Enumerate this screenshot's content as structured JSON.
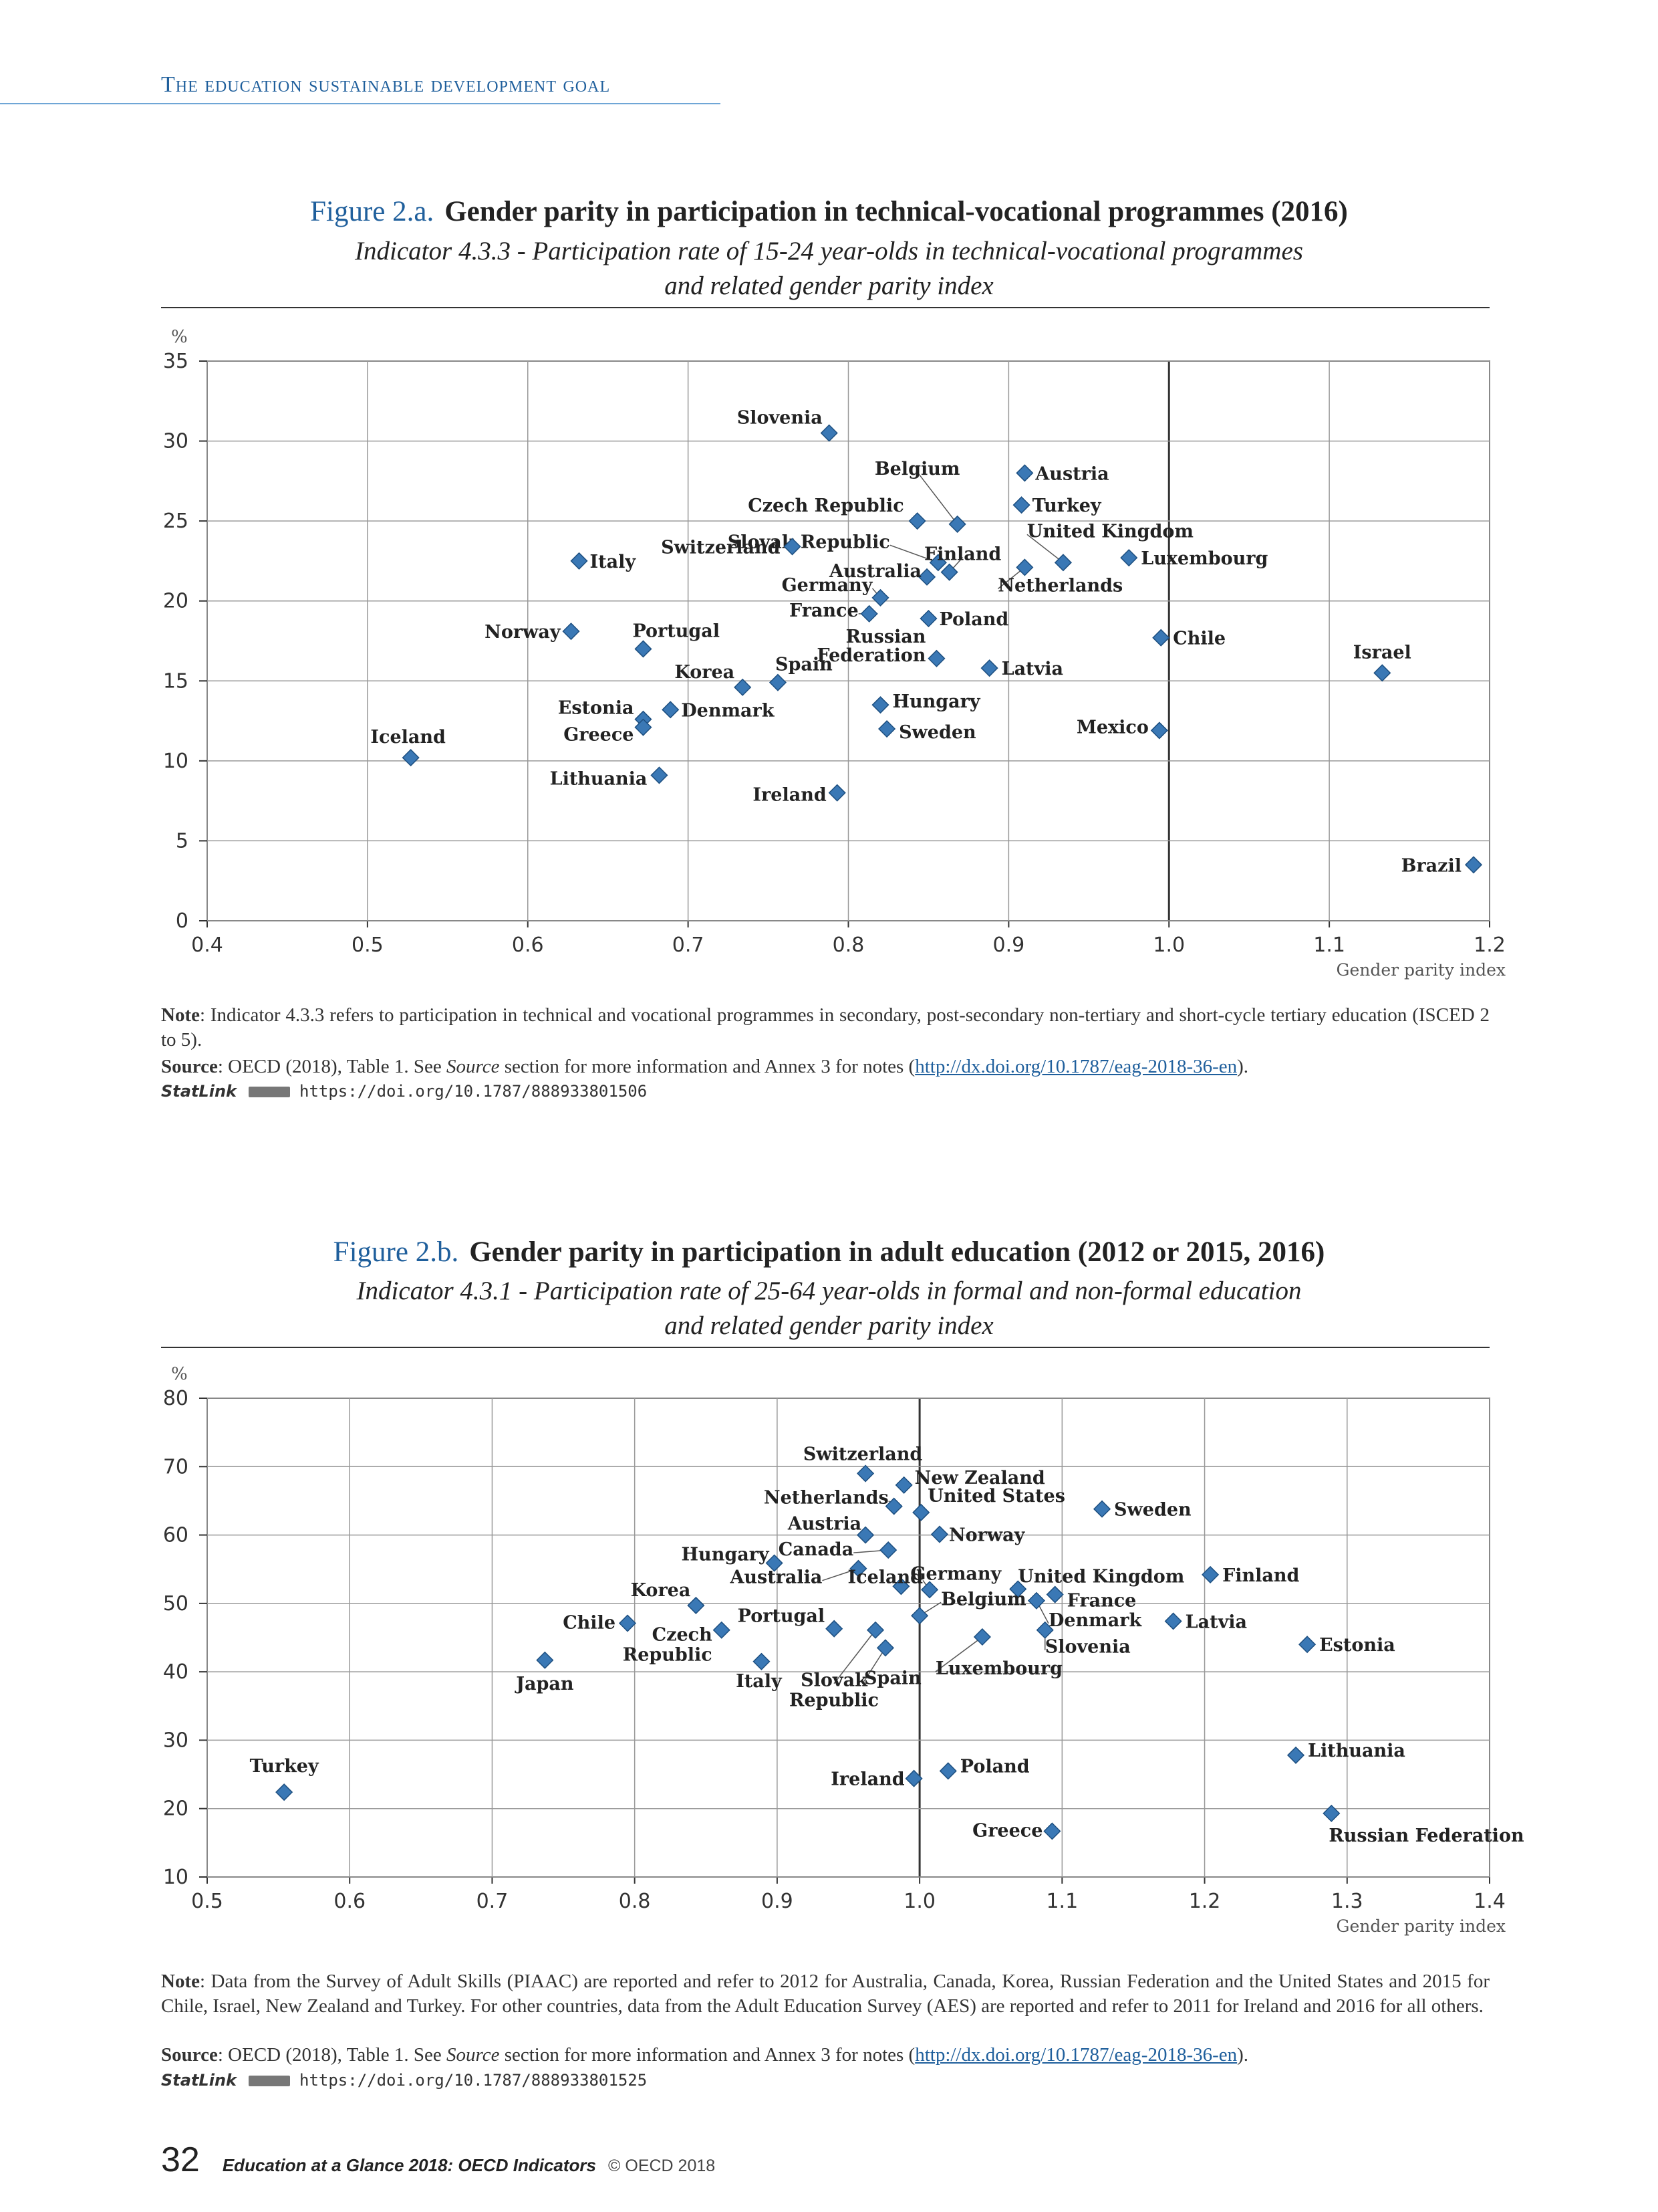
{
  "header": {
    "title": "The education sustainable development goal"
  },
  "figures": [
    {
      "number": "Figure 2.a.",
      "title": "Gender parity in participation in technical-vocational programmes (2016)",
      "subtitle_line1": "Indicator 4.3.3 - Participation rate of 15-24 year-olds in technical-vocational programmes",
      "subtitle_line2": "and related gender parity index",
      "note_label": "Note",
      "note": ": Indicator 4.3.3 refers to participation in technical and vocational programmes in secondary, post-secondary non-tertiary and short-cycle tertiary education (ISCED 2 to 5).",
      "source_label": "Source",
      "source_pre": ": OECD (2018), Table 1. See ",
      "source_italic": "Source",
      "source_post": " section for more information and Annex 3 for notes (",
      "source_link": "http://dx.doi.org/10.1787/eag-2018-36-en",
      "source_end": ").",
      "statlink_label": "StatLink",
      "statlink_url": "https://doi.org/10.1787/888933801506"
    },
    {
      "number": "Figure 2.b.",
      "title": "Gender parity in participation in adult education (2012 or 2015, 2016)",
      "subtitle_line1": "Indicator 4.3.1 - Participation rate of 25-64 year-olds in formal and non-formal education",
      "subtitle_line2": "and related gender parity index",
      "note_label": "Note",
      "note": ": Data from the Survey of Adult Skills (PIAAC) are reported and refer to 2012 for Australia, Canada, Korea, Russian Federation and the United States and 2015 for Chile, Israel, New Zealand and Turkey. For other countries, data from the Adult Education Survey (AES) are reported and refer to 2011 for Ireland and 2016 for all others.",
      "source_label": "Source",
      "source_pre": ": OECD (2018), Table 1. See ",
      "source_italic": "Source",
      "source_post": " section for more information and Annex 3 for notes (",
      "source_link": "http://dx.doi.org/10.1787/eag-2018-36-en",
      "source_end": ").",
      "statlink_label": "StatLink",
      "statlink_url": "https://doi.org/10.1787/888933801525"
    }
  ],
  "chart_data": [
    {
      "type": "scatter",
      "title": "Gender parity in participation in technical-vocational programmes (2016)",
      "xlabel": "Gender parity index",
      "ylabel": "%",
      "xlim": [
        0.4,
        1.2
      ],
      "ylim": [
        0,
        35
      ],
      "xticks": [
        "0.4",
        "0.5",
        "0.6",
        "0.7",
        "0.8",
        "0.9",
        "1.0",
        "1.1",
        "1.2"
      ],
      "yticks": [
        "0",
        "5",
        "10",
        "15",
        "20",
        "25",
        "30",
        "35"
      ],
      "grid": true,
      "reference_x": 1.0,
      "marker_color": "#3a78b5",
      "points": [
        {
          "label": "Slovenia",
          "x": 0.788,
          "y": 30.5
        },
        {
          "label": "Belgium",
          "x": 0.868,
          "y": 24.8
        },
        {
          "label": "Austria",
          "x": 0.91,
          "y": 28.0
        },
        {
          "label": "Turkey",
          "x": 0.908,
          "y": 26.0
        },
        {
          "label": "Czech Republic",
          "x": 0.843,
          "y": 25.0
        },
        {
          "label": "Slovak Republic",
          "x": 0.856,
          "y": 22.4
        },
        {
          "label": "Finland",
          "x": 0.863,
          "y": 21.8
        },
        {
          "label": "United Kingdom",
          "x": 0.934,
          "y": 22.4
        },
        {
          "label": "Netherlands",
          "x": 0.91,
          "y": 22.1
        },
        {
          "label": "Luxembourg",
          "x": 0.975,
          "y": 22.7
        },
        {
          "label": "Switzerland",
          "x": 0.765,
          "y": 23.4
        },
        {
          "label": "Italy",
          "x": 0.632,
          "y": 22.5
        },
        {
          "label": "Australia",
          "x": 0.849,
          "y": 21.5
        },
        {
          "label": "Germany",
          "x": 0.82,
          "y": 20.2
        },
        {
          "label": "France",
          "x": 0.813,
          "y": 19.2
        },
        {
          "label": "Poland",
          "x": 0.85,
          "y": 18.9
        },
        {
          "label": "Norway",
          "x": 0.627,
          "y": 18.1
        },
        {
          "label": "Portugal",
          "x": 0.672,
          "y": 17.0
        },
        {
          "label": "Chile",
          "x": 0.995,
          "y": 17.7
        },
        {
          "label": "Russian Federation",
          "x": 0.855,
          "y": 16.4
        },
        {
          "label": "Latvia",
          "x": 0.888,
          "y": 15.8
        },
        {
          "label": "Israel",
          "x": 1.133,
          "y": 15.5
        },
        {
          "label": "Korea",
          "x": 0.734,
          "y": 14.6
        },
        {
          "label": "Spain",
          "x": 0.756,
          "y": 14.9
        },
        {
          "label": "Estonia",
          "x": 0.672,
          "y": 12.6
        },
        {
          "label": "Greece",
          "x": 0.672,
          "y": 12.1
        },
        {
          "label": "Denmark",
          "x": 0.689,
          "y": 13.2
        },
        {
          "label": "Hungary",
          "x": 0.82,
          "y": 13.5
        },
        {
          "label": "Sweden",
          "x": 0.824,
          "y": 12.0
        },
        {
          "label": "Mexico",
          "x": 0.994,
          "y": 11.9
        },
        {
          "label": "Iceland",
          "x": 0.527,
          "y": 10.2
        },
        {
          "label": "Lithuania",
          "x": 0.682,
          "y": 9.1
        },
        {
          "label": "Ireland",
          "x": 0.793,
          "y": 8.0
        },
        {
          "label": "Brazil",
          "x": 1.19,
          "y": 3.5
        }
      ]
    },
    {
      "type": "scatter",
      "title": "Gender parity in participation in adult education (2012 or 2015, 2016)",
      "xlabel": "Gender parity index",
      "ylabel": "%",
      "xlim": [
        0.5,
        1.4
      ],
      "ylim": [
        10,
        80
      ],
      "xticks": [
        "0.5",
        "0.6",
        "0.7",
        "0.8",
        "0.9",
        "1.0",
        "1.1",
        "1.2",
        "1.3",
        "1.4"
      ],
      "yticks": [
        "10",
        "20",
        "30",
        "40",
        "50",
        "60",
        "70",
        "80"
      ],
      "grid": true,
      "reference_x": 1.0,
      "marker_color": "#3a78b5",
      "points": [
        {
          "label": "Switzerland",
          "x": 0.962,
          "y": 69.0
        },
        {
          "label": "New Zealand",
          "x": 0.989,
          "y": 67.3
        },
        {
          "label": "Netherlands",
          "x": 0.982,
          "y": 64.2
        },
        {
          "label": "United States",
          "x": 1.001,
          "y": 63.3
        },
        {
          "label": "Sweden",
          "x": 1.128,
          "y": 63.8
        },
        {
          "label": "Austria",
          "x": 0.962,
          "y": 60.0
        },
        {
          "label": "Norway",
          "x": 1.014,
          "y": 60.1
        },
        {
          "label": "Canada",
          "x": 0.978,
          "y": 57.8
        },
        {
          "label": "Hungary",
          "x": 0.898,
          "y": 55.9
        },
        {
          "label": "Australia",
          "x": 0.957,
          "y": 55.1
        },
        {
          "label": "Germany",
          "x": 0.987,
          "y": 52.5
        },
        {
          "label": "Finland",
          "x": 1.204,
          "y": 54.2
        },
        {
          "label": "United Kingdom",
          "x": 1.069,
          "y": 52.1
        },
        {
          "label": "France",
          "x": 1.095,
          "y": 51.3
        },
        {
          "label": "Korea",
          "x": 0.843,
          "y": 49.7
        },
        {
          "label": "Iceland",
          "x": 1.007,
          "y": 52.0
        },
        {
          "label": "Denmark",
          "x": 1.082,
          "y": 50.4
        },
        {
          "label": "Chile",
          "x": 0.795,
          "y": 47.1
        },
        {
          "label": "Portugal",
          "x": 0.94,
          "y": 46.3
        },
        {
          "label": "Belgium",
          "x": 1.0,
          "y": 48.2
        },
        {
          "label": "Latvia",
          "x": 1.178,
          "y": 47.4
        },
        {
          "label": "Czech Republic",
          "x": 0.861,
          "y": 46.1
        },
        {
          "label": "Slovenia",
          "x": 1.088,
          "y": 46.1
        },
        {
          "label": "Luxembourg",
          "x": 1.044,
          "y": 45.1
        },
        {
          "label": "Estonia",
          "x": 1.272,
          "y": 44.0
        },
        {
          "label": "Slovak Republic",
          "x": 0.969,
          "y": 46.1
        },
        {
          "label": "Spain",
          "x": 0.976,
          "y": 43.5
        },
        {
          "label": "Japan",
          "x": 0.737,
          "y": 41.7
        },
        {
          "label": "Italy",
          "x": 0.889,
          "y": 41.5
        },
        {
          "label": "Lithuania",
          "x": 1.264,
          "y": 27.8
        },
        {
          "label": "Poland",
          "x": 1.02,
          "y": 25.5
        },
        {
          "label": "Ireland",
          "x": 0.996,
          "y": 24.4
        },
        {
          "label": "Turkey",
          "x": 0.554,
          "y": 22.4
        },
        {
          "label": "Russian Federation",
          "x": 1.289,
          "y": 19.3
        },
        {
          "label": "Greece",
          "x": 1.093,
          "y": 16.7
        }
      ]
    }
  ],
  "footer": {
    "page_number": "32",
    "book_title": "Education at a Glance 2018: OECD Indicators",
    "copyright": "© OECD 2018"
  }
}
